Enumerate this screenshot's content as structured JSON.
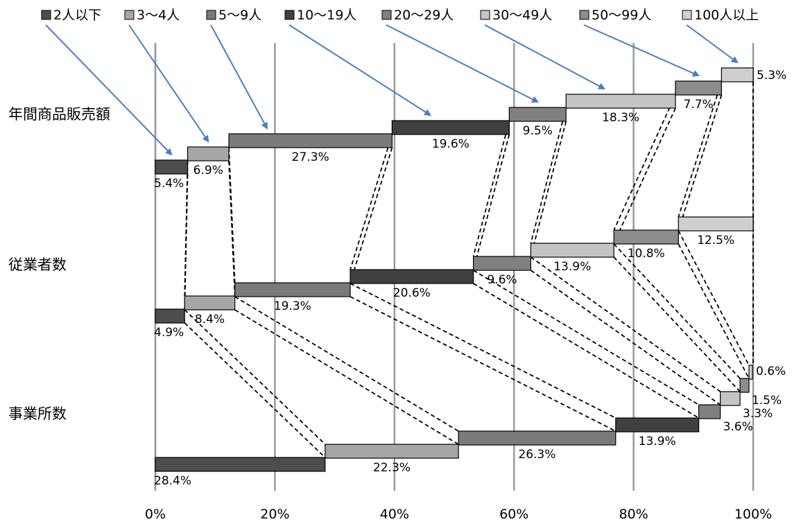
{
  "chart_data": {
    "type": "bar",
    "subtype": "100% stacked horizontal bar (waterfall style, connected by dashed lines)",
    "categories": [
      "年間商品販売額",
      "従業者数",
      "事業所数"
    ],
    "series": [
      {
        "name": "2人以下",
        "color": "#4d4d4d",
        "values": [
          5.4,
          4.9,
          28.4
        ]
      },
      {
        "name": "3～4人",
        "color": "#a6a6a6",
        "values": [
          6.9,
          8.4,
          22.3
        ]
      },
      {
        "name": "5～9人",
        "color": "#7a7a7a",
        "values": [
          27.3,
          19.3,
          26.3
        ]
      },
      {
        "name": "10～19人",
        "color": "#404040",
        "values": [
          19.6,
          20.6,
          13.9
        ]
      },
      {
        "name": "20～29人",
        "color": "#808080",
        "values": [
          9.5,
          9.6,
          3.6
        ]
      },
      {
        "name": "30～49人",
        "color": "#c4c4c4",
        "values": [
          18.3,
          13.9,
          3.3
        ]
      },
      {
        "name": "50～99人",
        "color": "#8c8c8c",
        "values": [
          7.7,
          10.8,
          1.5
        ]
      },
      {
        "name": "100人以上",
        "color": "#cfcfcf",
        "values": [
          5.3,
          12.5,
          0.6
        ]
      }
    ],
    "data_labels": [
      [
        "5.4%",
        "6.9%",
        "27.3%",
        "19.6%",
        "9.5%",
        "18.3%",
        "7.7%",
        "5.3%"
      ],
      [
        "4.9%",
        "8.4%",
        "19.3%",
        "20.6%",
        "9.6%",
        "13.9%",
        "10.8%",
        "12.5%"
      ],
      [
        "28.4%",
        "22.3%",
        "26.3%",
        "13.9%",
        "3.6%",
        "3.3%",
        "1.5%",
        "0.6%"
      ]
    ],
    "x_ticks": [
      "0%",
      "20%",
      "40%",
      "60%",
      "80%",
      "100%"
    ],
    "xlim": [
      0,
      100
    ],
    "grid": true,
    "legend_position": "top",
    "title": "",
    "xlabel": "",
    "ylabel": ""
  }
}
